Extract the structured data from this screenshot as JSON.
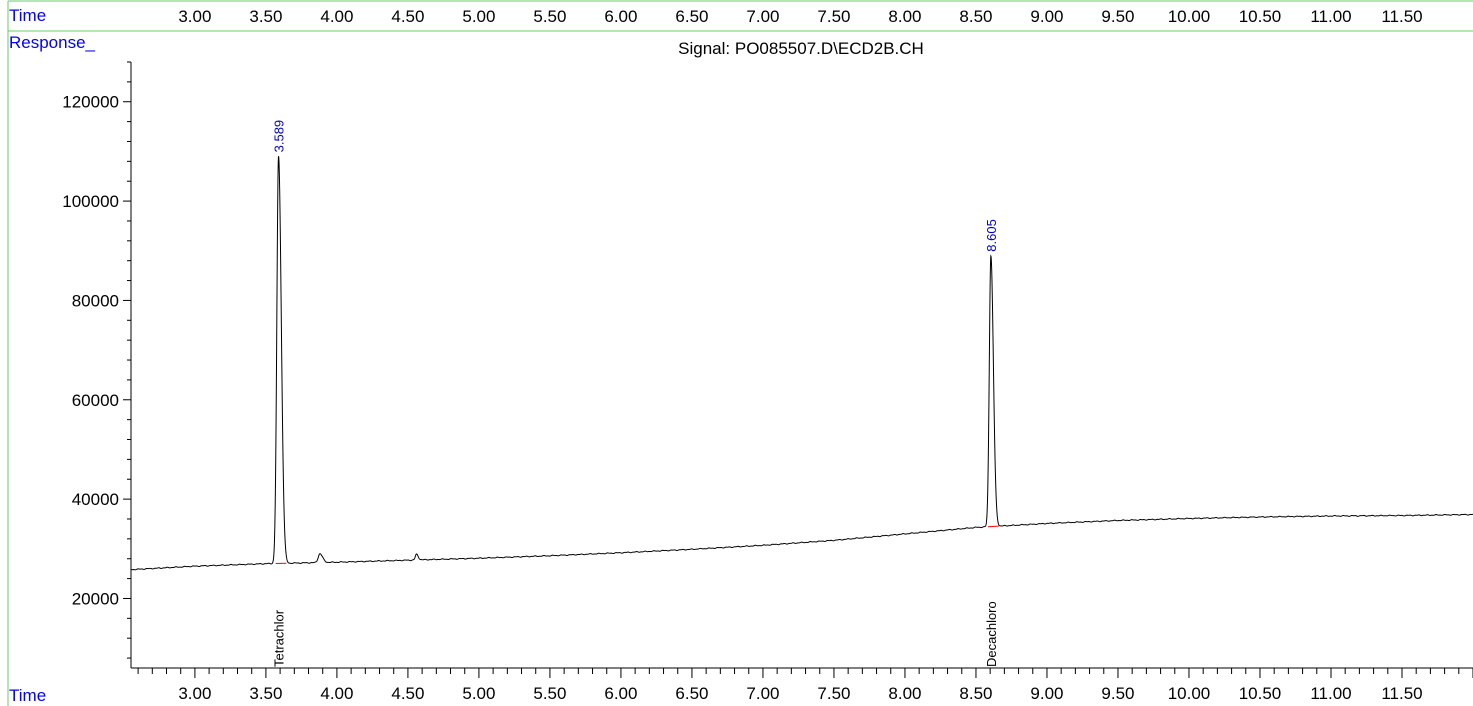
{
  "header": {
    "time_label": "Time",
    "response_label": "Response_"
  },
  "footer": {
    "time_label": "Time"
  },
  "colors": {
    "label_blue": "#0000ff",
    "border_green": "#66cc66",
    "trace": "#000000",
    "baseline": "#ff0000",
    "peak_label": "#0000cc"
  },
  "chart_data": {
    "type": "line",
    "title": "Signal: PO085507.D\\ECD2B.CH",
    "xlabel": "Time",
    "ylabel": "Response_",
    "xlim": [
      2.55,
      12.0
    ],
    "ylim": [
      6000,
      128000
    ],
    "x_ticks": [
      "3.00",
      "3.50",
      "4.00",
      "4.50",
      "5.00",
      "5.50",
      "6.00",
      "6.50",
      "7.00",
      "7.50",
      "8.00",
      "8.50",
      "9.00",
      "9.50",
      "10.00",
      "10.50",
      "11.00",
      "11.50"
    ],
    "y_ticks": [
      "20000",
      "40000",
      "60000",
      "80000",
      "100000",
      "120000"
    ],
    "baseline": {
      "x": [
        2.55,
        3.0,
        3.5,
        4.0,
        4.5,
        5.0,
        5.5,
        6.0,
        6.5,
        7.0,
        7.5,
        8.0,
        8.5,
        9.0,
        9.5,
        10.0,
        10.5,
        11.0,
        11.5,
        12.0
      ],
      "y": [
        25800,
        26500,
        27000,
        27300,
        27700,
        28100,
        28600,
        29200,
        29900,
        30700,
        31700,
        33000,
        34300,
        35100,
        35700,
        36100,
        36400,
        36600,
        36700,
        36900
      ]
    },
    "peaks": [
      {
        "rt": "3.589",
        "x": 3.589,
        "height": 109000,
        "width": 0.012,
        "compound": "Tetrachlor"
      },
      {
        "rt": "8.605",
        "x": 8.605,
        "height": 89000,
        "width": 0.011,
        "compound": "Decachloro"
      },
      {
        "rt": "",
        "x": 3.88,
        "height": 29000,
        "width": 0.012,
        "compound": ""
      },
      {
        "rt": "",
        "x": 4.56,
        "height": 28900,
        "width": 0.008,
        "compound": ""
      }
    ],
    "series": [
      {
        "values": "chromatogram trace"
      }
    ]
  }
}
